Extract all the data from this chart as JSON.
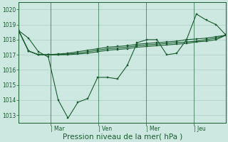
{
  "background_color": "#cce8e0",
  "grid_color": "#aacfc8",
  "line_color": "#1a5c30",
  "marker": "s",
  "markersize": 2.0,
  "linewidth": 0.8,
  "xlabel": "Pression niveau de la mer( hPa )",
  "xlabel_fontsize": 7.5,
  "ytick_labels": [
    "1013",
    "1014",
    "1015",
    "1016",
    "1017",
    "1018",
    "1019",
    "1020"
  ],
  "yticks": [
    1013,
    1014,
    1015,
    1016,
    1017,
    1018,
    1019,
    1020
  ],
  "xtick_labels": [
    "| Mar",
    "| Ven",
    "| Mer",
    "| Jeu"
  ],
  "xtick_positions": [
    2,
    5,
    8,
    11
  ],
  "ylim": [
    1012.5,
    1020.5
  ],
  "xlim": [
    0,
    13
  ],
  "series": [
    [
      1018.6,
      1018.1,
      1017.2,
      1016.85,
      1014.0,
      1012.8,
      1013.85,
      1014.1,
      1015.5,
      1015.5,
      1015.4,
      1016.3,
      1017.8,
      1018.0,
      1018.0,
      1017.0,
      1017.1,
      1018.0,
      1019.7,
      1019.3,
      1019.0,
      1018.3
    ],
    [
      1018.6,
      1017.25,
      1017.0,
      1017.0,
      1017.05,
      1017.1,
      1017.2,
      1017.3,
      1017.4,
      1017.5,
      1017.55,
      1017.6,
      1017.7,
      1017.75,
      1017.8,
      1017.85,
      1017.9,
      1018.0,
      1018.05,
      1018.1,
      1018.2,
      1018.3
    ],
    [
      1018.6,
      1017.25,
      1017.0,
      1017.0,
      1017.0,
      1017.05,
      1017.1,
      1017.2,
      1017.3,
      1017.4,
      1017.45,
      1017.5,
      1017.6,
      1017.65,
      1017.7,
      1017.75,
      1017.8,
      1017.85,
      1017.9,
      1018.0,
      1018.1,
      1018.3
    ],
    [
      1018.6,
      1017.25,
      1017.0,
      1017.0,
      1017.0,
      1017.0,
      1017.05,
      1017.1,
      1017.2,
      1017.3,
      1017.35,
      1017.4,
      1017.5,
      1017.55,
      1017.6,
      1017.65,
      1017.7,
      1017.75,
      1017.85,
      1017.9,
      1018.0,
      1018.3
    ]
  ]
}
